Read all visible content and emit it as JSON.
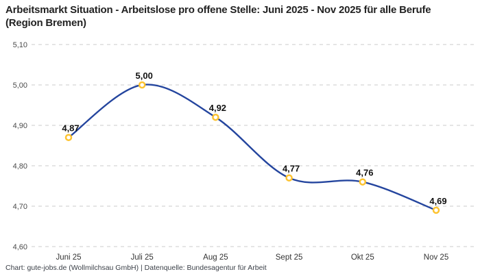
{
  "header": {
    "title": "Arbeitsmarkt Situation - Arbeitslose pro offene Stelle: Juni 2025 - Nov 2025 für alle Berufe (Region Bremen)"
  },
  "footer": {
    "text": "Chart: gute-jobs.de (Wollmilchsau GmbH) | Datenquelle: Bundesagentur für Arbeit"
  },
  "chart_data": {
    "type": "line",
    "title": "Arbeitsmarkt Situation - Arbeitslose pro offene Stelle: Juni 2025 - Nov 2025 für alle Berufe (Region Bremen)",
    "categories": [
      "Juni 25",
      "Juli 25",
      "Aug 25",
      "Sept 25",
      "Okt 25",
      "Nov 25"
    ],
    "values": [
      4.87,
      5.0,
      4.92,
      4.77,
      4.76,
      4.69
    ],
    "value_labels": [
      "4,87",
      "5,00",
      "4,92",
      "4,77",
      "4,76",
      "4,69"
    ],
    "xlabel": "",
    "ylabel": "",
    "ylim": [
      4.6,
      5.1
    ],
    "yticks": [
      {
        "value": 4.6,
        "label": "4,60"
      },
      {
        "value": 4.7,
        "label": "4,70"
      },
      {
        "value": 4.8,
        "label": "4,80"
      },
      {
        "value": 4.9,
        "label": "4,90"
      },
      {
        "value": 5.0,
        "label": "5,00"
      },
      {
        "value": 5.1,
        "label": "5,10"
      }
    ],
    "grid": "horizontal-dashed",
    "legend": "none",
    "line_style": "smooth",
    "colors": {
      "line": "#24459e",
      "marker_ring": "#fdc330",
      "marker_fill": "#ffffff",
      "grid": "#cbcbcb",
      "ytick_text": "#4a4a4a",
      "xtick_text": "#333333",
      "data_label": "#111111",
      "title": "#222222",
      "footer": "#3a3f47"
    }
  }
}
